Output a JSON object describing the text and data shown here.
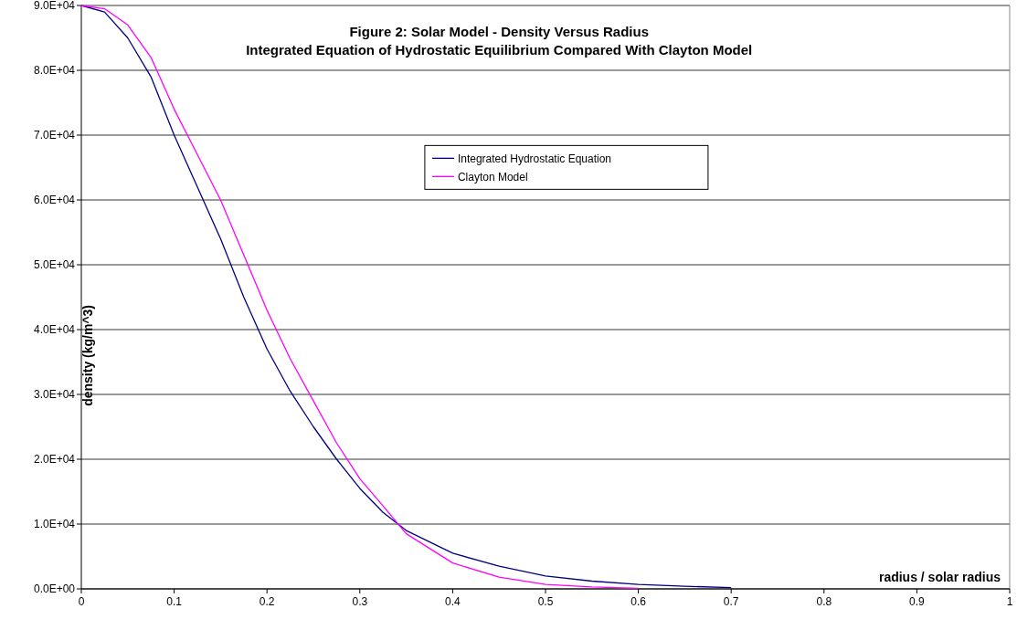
{
  "chart_data": {
    "type": "line",
    "title": "Figure 2: Solar Model - Density Versus Radius",
    "subtitle": "Integrated Equation of Hydrostatic Equilibrium Compared With Clayton Model",
    "xlabel": "radius / solar radius",
    "ylabel": "density (kg/m^3)",
    "x": [
      0,
      0.025,
      0.05,
      0.075,
      0.1,
      0.125,
      0.15,
      0.175,
      0.2,
      0.225,
      0.25,
      0.275,
      0.3,
      0.325,
      0.35,
      0.4,
      0.45,
      0.5,
      0.55,
      0.6,
      0.65,
      0.7
    ],
    "series": [
      {
        "name": "Integrated Hydrostatic Equation",
        "color": "#000080",
        "values": [
          90000,
          89000,
          85000,
          79000,
          70000,
          62000,
          54000,
          45000,
          37000,
          30500,
          25000,
          20000,
          15500,
          11800,
          9000,
          5500,
          3500,
          2000,
          1200,
          700,
          400,
          200
        ]
      },
      {
        "name": "Clayton Model",
        "color": "#ff00ff",
        "values": [
          90000,
          89500,
          87000,
          82000,
          74000,
          67000,
          60000,
          51500,
          43000,
          35500,
          29000,
          22500,
          17000,
          12800,
          8500,
          4000,
          1800,
          700,
          300,
          100,
          null,
          null
        ]
      }
    ],
    "xlim": [
      0,
      1
    ],
    "xticks": [
      0,
      0.1,
      0.2,
      0.3,
      0.4,
      0.5,
      0.6,
      0.7,
      0.8,
      0.9,
      1
    ],
    "ylim": [
      0,
      90000
    ],
    "yticks": [
      {
        "value": 0,
        "label": "0.0E+00"
      },
      {
        "value": 10000,
        "label": "1.0E+04"
      },
      {
        "value": 20000,
        "label": "2.0E+04"
      },
      {
        "value": 30000,
        "label": "3.0E+04"
      },
      {
        "value": 40000,
        "label": "4.0E+04"
      },
      {
        "value": 50000,
        "label": "5.0E+04"
      },
      {
        "value": 60000,
        "label": "6.0E+04"
      },
      {
        "value": 70000,
        "label": "7.0E+04"
      },
      {
        "value": 80000,
        "label": "8.0E+04"
      },
      {
        "value": 90000,
        "label": "9.0E+04"
      }
    ],
    "grid": "y",
    "legend": "top",
    "marker": "none",
    "line_style": "solid"
  }
}
